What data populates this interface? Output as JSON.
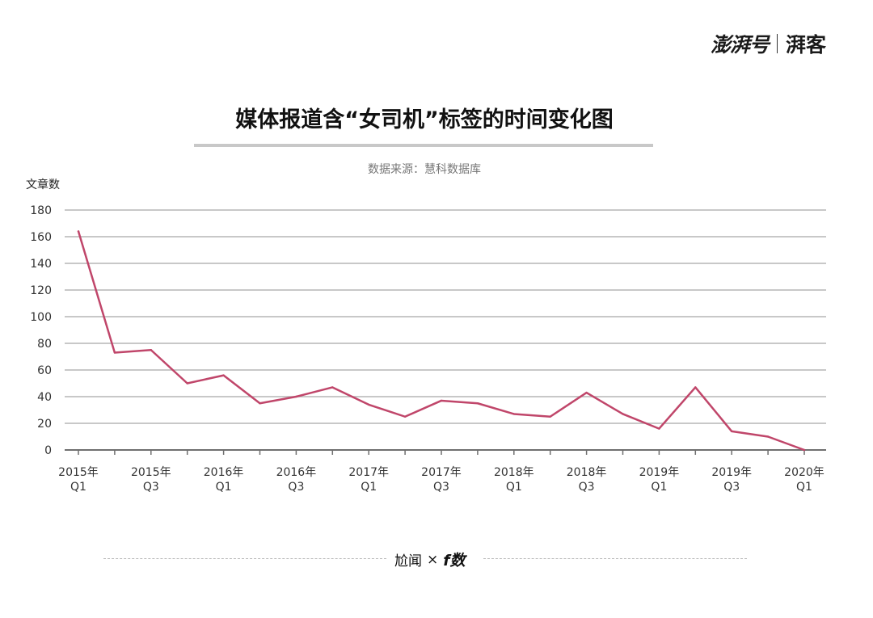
{
  "header": {
    "brand_main": "澎湃号",
    "brand_sub": "湃客"
  },
  "footer": {
    "left": "尬闻",
    "times": "×",
    "right": "f数"
  },
  "chart_data": {
    "type": "line",
    "title": "媒体报道含“女司机”标签的时间变化图",
    "source": "数据来源：慧科数据库",
    "ylabel": "文章数",
    "xlabel": "",
    "ylim": [
      0,
      180
    ],
    "yticks": [
      0,
      20,
      40,
      60,
      80,
      100,
      120,
      140,
      160,
      180
    ],
    "grid": true,
    "color": "#c0466a",
    "x": [
      "2015 Q1",
      "2015 Q2",
      "2015 Q3",
      "2015 Q4",
      "2016 Q1",
      "2016 Q2",
      "2016 Q3",
      "2016 Q4",
      "2017 Q1",
      "2017 Q2",
      "2017 Q3",
      "2017 Q4",
      "2018 Q1",
      "2018 Q2",
      "2018 Q3",
      "2018 Q4",
      "2019 Q1",
      "2019 Q2",
      "2019 Q3",
      "2019 Q4",
      "2020 Q1"
    ],
    "values": [
      164,
      73,
      75,
      50,
      56,
      35,
      40,
      47,
      34,
      25,
      37,
      35,
      27,
      25,
      43,
      27,
      16,
      47,
      14,
      10,
      0
    ],
    "tick_labels": [
      {
        "index": 0,
        "line1": "2015年",
        "line2": "Q1"
      },
      {
        "index": 2,
        "line1": "2015年",
        "line2": "Q3"
      },
      {
        "index": 4,
        "line1": "2016年",
        "line2": "Q1"
      },
      {
        "index": 6,
        "line1": "2016年",
        "line2": "Q3"
      },
      {
        "index": 8,
        "line1": "2017年",
        "line2": "Q1"
      },
      {
        "index": 10,
        "line1": "2017年",
        "line2": "Q3"
      },
      {
        "index": 12,
        "line1": "2018年",
        "line2": "Q1"
      },
      {
        "index": 14,
        "line1": "2018年",
        "line2": "Q3"
      },
      {
        "index": 16,
        "line1": "2019年",
        "line2": "Q1"
      },
      {
        "index": 18,
        "line1": "2019年",
        "line2": "Q3"
      },
      {
        "index": 20,
        "line1": "2020年",
        "line2": "Q1"
      }
    ]
  }
}
